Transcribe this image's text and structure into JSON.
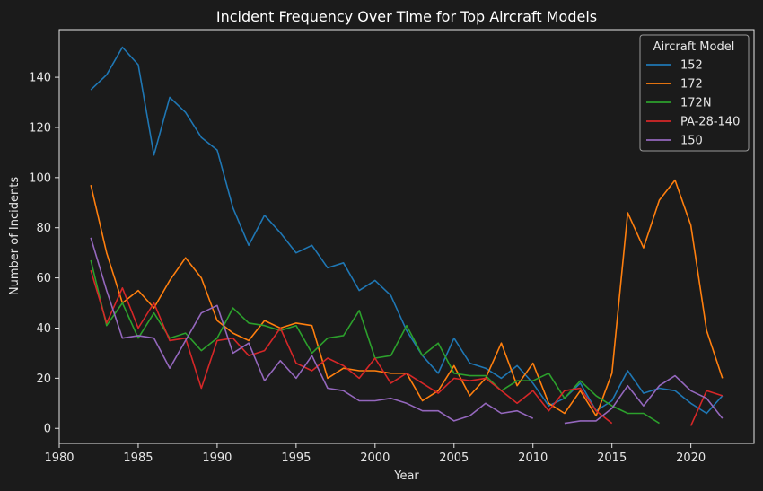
{
  "chart_data": {
    "type": "line",
    "title": "Incident Frequency Over Time for Top Aircraft Models",
    "xlabel": "Year",
    "ylabel": "Number of Incidents",
    "xlim": [
      1980,
      2024
    ],
    "ylim": [
      -6,
      159
    ],
    "xticks": [
      1980,
      1985,
      1990,
      1995,
      2000,
      2005,
      2010,
      2015,
      2020
    ],
    "yticks": [
      0,
      20,
      40,
      60,
      80,
      100,
      120,
      140
    ],
    "grid": false,
    "legend": {
      "title": "Aircraft Model",
      "position": "top-right"
    },
    "series": [
      {
        "name": "152",
        "color": "#1f77b4",
        "points": [
          [
            1982,
            135
          ],
          [
            1983,
            141
          ],
          [
            1984,
            152
          ],
          [
            1985,
            145
          ],
          [
            1986,
            109
          ],
          [
            1987,
            132
          ],
          [
            1988,
            126
          ],
          [
            1989,
            116
          ],
          [
            1990,
            111
          ],
          [
            1991,
            88
          ],
          [
            1992,
            73
          ],
          [
            1993,
            85
          ],
          [
            1994,
            78
          ],
          [
            1995,
            70
          ],
          [
            1996,
            73
          ],
          [
            1997,
            64
          ],
          [
            1998,
            66
          ],
          [
            1999,
            55
          ],
          [
            2000,
            59
          ],
          [
            2001,
            53
          ],
          [
            2002,
            39
          ],
          [
            2003,
            29
          ],
          [
            2004,
            22
          ],
          [
            2005,
            36
          ],
          [
            2006,
            26
          ],
          [
            2007,
            24
          ],
          [
            2008,
            20
          ],
          [
            2009,
            25
          ],
          [
            2010,
            18
          ],
          [
            2011,
            9
          ],
          [
            2012,
            12
          ],
          [
            2013,
            18
          ],
          [
            2014,
            7
          ],
          [
            2015,
            11
          ],
          [
            2016,
            23
          ],
          [
            2017,
            14
          ],
          [
            2018,
            16
          ],
          [
            2019,
            15
          ],
          [
            2020,
            10
          ],
          [
            2021,
            6
          ],
          [
            2022,
            13
          ]
        ]
      },
      {
        "name": "172",
        "color": "#ff7f0e",
        "points": [
          [
            1982,
            97
          ],
          [
            1983,
            70
          ],
          [
            1984,
            50
          ],
          [
            1985,
            55
          ],
          [
            1986,
            48
          ],
          [
            1987,
            59
          ],
          [
            1988,
            68
          ],
          [
            1989,
            60
          ],
          [
            1990,
            43
          ],
          [
            1991,
            38
          ],
          [
            1992,
            35
          ],
          [
            1993,
            43
          ],
          [
            1994,
            40
          ],
          [
            1995,
            42
          ],
          [
            1996,
            41
          ],
          [
            1997,
            20
          ],
          [
            1998,
            24
          ],
          [
            1999,
            23
          ],
          [
            2000,
            23
          ],
          [
            2001,
            22
          ],
          [
            2002,
            22
          ],
          [
            2003,
            11
          ],
          [
            2004,
            15
          ],
          [
            2005,
            25
          ],
          [
            2006,
            13
          ],
          [
            2007,
            20
          ],
          [
            2008,
            34
          ],
          [
            2009,
            17
          ],
          [
            2010,
            26
          ],
          [
            2011,
            10
          ],
          [
            2012,
            6
          ],
          [
            2013,
            15
          ],
          [
            2014,
            5
          ],
          [
            2015,
            22
          ],
          [
            2016,
            86
          ],
          [
            2017,
            72
          ],
          [
            2018,
            91
          ],
          [
            2019,
            99
          ],
          [
            2020,
            81
          ],
          [
            2021,
            39
          ],
          [
            2022,
            20
          ]
        ]
      },
      {
        "name": "172N",
        "color": "#2ca02c",
        "points": [
          [
            1982,
            67
          ],
          [
            1983,
            41
          ],
          [
            1984,
            50
          ],
          [
            1985,
            36
          ],
          [
            1986,
            46
          ],
          [
            1987,
            36
          ],
          [
            1988,
            38
          ],
          [
            1989,
            31
          ],
          [
            1990,
            36
          ],
          [
            1991,
            48
          ],
          [
            1992,
            42
          ],
          [
            1993,
            41
          ],
          [
            1994,
            39
          ],
          [
            1995,
            41
          ],
          [
            1996,
            30
          ],
          [
            1997,
            36
          ],
          [
            1998,
            37
          ],
          [
            1999,
            47
          ],
          [
            2000,
            28
          ],
          [
            2001,
            29
          ],
          [
            2002,
            41
          ],
          [
            2003,
            29
          ],
          [
            2004,
            34
          ],
          [
            2005,
            22
          ],
          [
            2006,
            21
          ],
          [
            2007,
            21
          ],
          [
            2008,
            15
          ],
          [
            2009,
            19
          ],
          [
            2010,
            19
          ],
          [
            2011,
            22
          ],
          [
            2012,
            12
          ],
          [
            2013,
            19
          ],
          [
            2014,
            13
          ],
          [
            2015,
            9
          ],
          [
            2016,
            6
          ],
          [
            2017,
            6
          ],
          [
            2018,
            2
          ]
        ]
      },
      {
        "name": "PA-28-140",
        "color": "#d62728",
        "points": [
          [
            1982,
            63
          ],
          [
            1983,
            42
          ],
          [
            1984,
            56
          ],
          [
            1985,
            40
          ],
          [
            1986,
            50
          ],
          [
            1987,
            35
          ],
          [
            1988,
            36
          ],
          [
            1989,
            16
          ],
          [
            1990,
            35
          ],
          [
            1991,
            36
          ],
          [
            1992,
            29
          ],
          [
            1993,
            31
          ],
          [
            1994,
            40
          ],
          [
            1995,
            26
          ],
          [
            1996,
            23
          ],
          [
            1997,
            28
          ],
          [
            1998,
            25
          ],
          [
            1999,
            20
          ],
          [
            2000,
            28
          ],
          [
            2001,
            18
          ],
          [
            2002,
            22
          ],
          [
            2003,
            18
          ],
          [
            2004,
            14
          ],
          [
            2005,
            20
          ],
          [
            2006,
            19
          ],
          [
            2007,
            20
          ],
          [
            2008,
            15
          ],
          [
            2009,
            10
          ],
          [
            2010,
            15
          ],
          [
            2011,
            7
          ],
          [
            2012,
            15
          ],
          [
            2013,
            16
          ],
          [
            2014,
            7
          ],
          [
            2015,
            2
          ],
          [
            null,
            null
          ],
          [
            2020,
            1
          ],
          [
            2021,
            15
          ],
          [
            2022,
            13
          ]
        ]
      },
      {
        "name": "150",
        "color": "#9467bd",
        "points": [
          [
            1982,
            76
          ],
          [
            1983,
            55
          ],
          [
            1984,
            36
          ],
          [
            1985,
            37
          ],
          [
            1986,
            36
          ],
          [
            1987,
            24
          ],
          [
            1988,
            35
          ],
          [
            1989,
            46
          ],
          [
            1990,
            49
          ],
          [
            1991,
            30
          ],
          [
            1992,
            34
          ],
          [
            1993,
            19
          ],
          [
            1994,
            27
          ],
          [
            1995,
            20
          ],
          [
            1996,
            29
          ],
          [
            1997,
            16
          ],
          [
            1998,
            15
          ],
          [
            1999,
            11
          ],
          [
            2000,
            11
          ],
          [
            2001,
            12
          ],
          [
            2002,
            10
          ],
          [
            2003,
            7
          ],
          [
            2004,
            7
          ],
          [
            2005,
            3
          ],
          [
            2006,
            5
          ],
          [
            2007,
            10
          ],
          [
            2008,
            6
          ],
          [
            2009,
            7
          ],
          [
            2010,
            4
          ],
          [
            null,
            null
          ],
          [
            2012,
            2
          ],
          [
            2013,
            3
          ],
          [
            2014,
            3
          ],
          [
            2015,
            8
          ],
          [
            2016,
            17
          ],
          [
            2017,
            9
          ],
          [
            2018,
            17
          ],
          [
            2019,
            21
          ],
          [
            2020,
            15
          ],
          [
            2021,
            12
          ],
          [
            2022,
            4
          ]
        ]
      }
    ]
  }
}
